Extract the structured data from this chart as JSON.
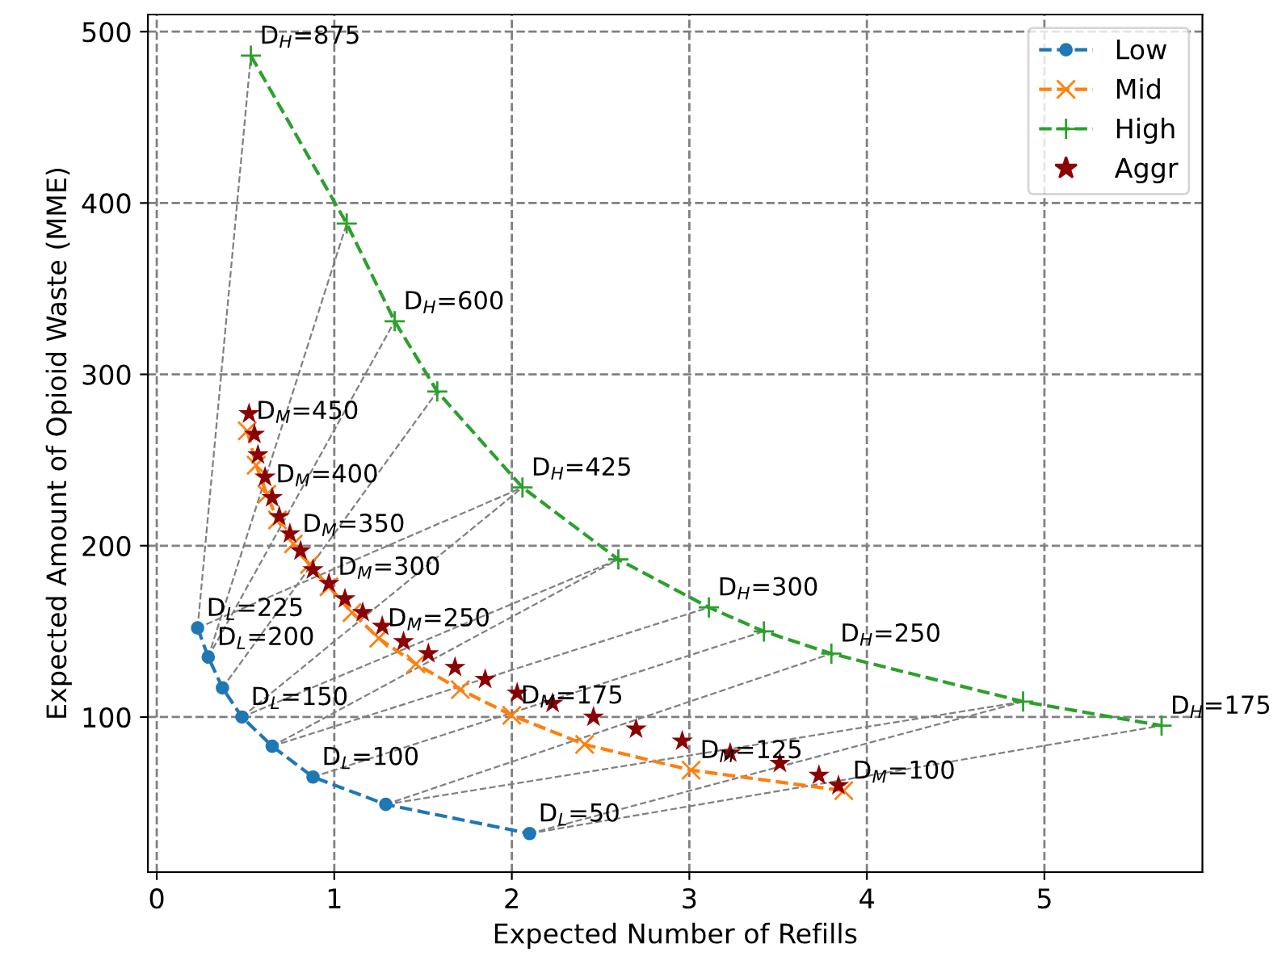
{
  "chart_data": {
    "type": "line",
    "xlabel": "Expected Number of Refills",
    "ylabel": "Expected Amount of Opioid Waste (MME)",
    "xlim": [
      -0.05,
      5.89
    ],
    "ylim": [
      9.5,
      510
    ],
    "xticks": [
      0,
      1,
      2,
      3,
      4,
      5
    ],
    "yticks": [
      100,
      200,
      300,
      400,
      500
    ],
    "grid": true,
    "legend": "top right",
    "series": [
      {
        "color": "#808080",
        "line_style": "dashed",
        "marker": "none",
        "x": [
          0.23,
          0.53,
          null,
          0.29,
          1.07,
          null,
          0.37,
          1.58,
          null,
          0.23,
          2.06,
          null,
          0.48,
          2.6,
          null,
          0.65,
          3.11,
          null,
          0.88,
          3.42,
          null,
          1.29,
          3.8,
          null,
          1.29,
          4.88,
          null,
          2.1,
          5.66,
          null,
          2.1,
          4.88,
          null,
          0.29,
          1.34,
          null,
          0.48,
          2.06,
          null,
          0.65,
          2.6
        ],
        "values": [
          152,
          486,
          null,
          135,
          388,
          null,
          117,
          290,
          null,
          152,
          234,
          null,
          100,
          192,
          null,
          83,
          164,
          null,
          65,
          150,
          null,
          49,
          137,
          null,
          49,
          109,
          null,
          32,
          95,
          null,
          32,
          109,
          null,
          135,
          331,
          null,
          100,
          234,
          null,
          83,
          192
        ]
      },
      {
        "name": "Low",
        "color": "#1f77b4",
        "line_style": "dashed",
        "marker": "circle",
        "x": [
          0.23,
          0.29,
          0.37,
          0.48,
          0.65,
          0.88,
          1.29,
          2.1
        ],
        "values": [
          152,
          135,
          117,
          100,
          83,
          65,
          49,
          32
        ]
      },
      {
        "name": "Mid",
        "color": "#ff7f0e",
        "line_style": "dashed",
        "marker": "cross",
        "x": [
          0.51,
          0.56,
          0.62,
          0.68,
          0.77,
          0.86,
          0.97,
          1.1,
          1.25,
          1.46,
          1.71,
          2.0,
          2.41,
          3.01,
          3.87
        ],
        "values": [
          267,
          247,
          230,
          215,
          201,
          189,
          176,
          161,
          146,
          131,
          116,
          101,
          84,
          69,
          57
        ]
      },
      {
        "name": "High",
        "color": "#2ca02c",
        "line_style": "dashed",
        "marker": "plus",
        "x": [
          0.53,
          1.07,
          1.34,
          1.58,
          2.06,
          2.6,
          3.11,
          3.42,
          3.8,
          4.88,
          5.66
        ],
        "values": [
          486,
          388,
          331,
          290,
          234,
          192,
          164,
          150,
          137,
          109,
          95
        ]
      },
      {
        "name": "Aggr",
        "type": "scatter",
        "color": "#8b0000",
        "marker": "star",
        "x": [
          0.52,
          0.55,
          0.57,
          0.61,
          0.65,
          0.69,
          0.75,
          0.81,
          0.88,
          0.97,
          1.06,
          1.16,
          1.27,
          1.39,
          1.53,
          1.68,
          1.85,
          2.03,
          2.23,
          2.46,
          2.7,
          2.96,
          3.23,
          3.51,
          3.73,
          3.84
        ],
        "values": [
          277,
          265,
          253,
          240,
          228,
          217,
          207,
          197,
          186,
          178,
          169,
          161,
          153,
          144,
          137,
          129,
          122,
          114,
          108,
          100,
          93,
          86,
          79,
          73,
          66,
          60
        ]
      }
    ],
    "annotations": [
      {
        "text": "D$_{H}$=875",
        "x": 0.53,
        "y": 486
      },
      {
        "text": "D$_{H}$=600",
        "x": 1.34,
        "y": 331
      },
      {
        "text": "D$_{H}$=425",
        "x": 2.06,
        "y": 234
      },
      {
        "text": "D$_{H}$=300",
        "x": 3.11,
        "y": 164
      },
      {
        "text": "D$_{H}$=250",
        "x": 3.8,
        "y": 137
      },
      {
        "text": "D$_{H}$=175",
        "x": 5.66,
        "y": 95
      },
      {
        "text": "D$_{M}$=450",
        "x": 0.51,
        "y": 267
      },
      {
        "text": "D$_{M}$=400",
        "x": 0.62,
        "y": 230
      },
      {
        "text": "D$_{M}$=350",
        "x": 0.77,
        "y": 201
      },
      {
        "text": "D$_{M}$=300",
        "x": 0.97,
        "y": 176
      },
      {
        "text": "D$_{M}$=250",
        "x": 1.25,
        "y": 146
      },
      {
        "text": "D$_{M}$=175",
        "x": 2.0,
        "y": 101
      },
      {
        "text": "D$_{M}$=125",
        "x": 3.01,
        "y": 69
      },
      {
        "text": "D$_{M}$=100",
        "x": 3.87,
        "y": 57
      },
      {
        "text": "D$_{L}$=225",
        "x": 0.23,
        "y": 152
      },
      {
        "text": "D$_{L}$=200",
        "x": 0.29,
        "y": 135
      },
      {
        "text": "D$_{L}$=150",
        "x": 0.48,
        "y": 100
      },
      {
        "text": "D$_{L}$=100",
        "x": 0.88,
        "y": 65
      },
      {
        "text": "D$_{L}$=50",
        "x": 2.1,
        "y": 32
      }
    ]
  }
}
